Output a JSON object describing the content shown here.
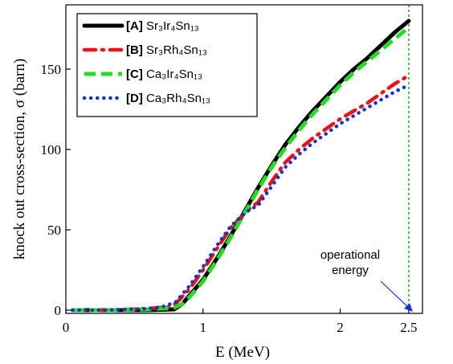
{
  "chart_data": {
    "type": "line",
    "xlabel": "E (MeV)",
    "ylabel": "knock out cross-section, σ (barn)",
    "xlim": [
      0,
      2.6
    ],
    "ylim": [
      -2,
      190
    ],
    "x_ticks": [
      {
        "value": 0,
        "label": "0"
      },
      {
        "value": 1,
        "label": "1"
      },
      {
        "value": 2,
        "label": "2"
      },
      {
        "value": 2.5,
        "label": "2.5"
      }
    ],
    "y_ticks": [
      {
        "value": 0,
        "label": "0"
      },
      {
        "value": 50,
        "label": "50"
      },
      {
        "value": 100,
        "label": "100"
      },
      {
        "value": 150,
        "label": "150"
      }
    ],
    "series": [
      {
        "key": "A",
        "tag": "[A]",
        "compound": "Sr₃Ir₄Sn₁₃",
        "color": "#000000",
        "style": "solid",
        "x": [
          0.05,
          0.3,
          0.6,
          0.79,
          0.85,
          0.9,
          1.0,
          1.1,
          1.2,
          1.3,
          1.4,
          1.5,
          1.6,
          1.7,
          1.8,
          1.9,
          2.0,
          2.1,
          2.2,
          2.3,
          2.4,
          2.5
        ],
        "y": [
          0,
          0,
          0,
          0.5,
          4,
          9,
          19,
          32,
          46,
          61,
          76,
          90,
          103,
          114,
          124,
          133,
          142,
          150,
          157,
          165,
          173,
          180
        ]
      },
      {
        "key": "B",
        "tag": "[B]",
        "compound": "Sr₃Rh₄Sn₁₃",
        "color": "#ee1111",
        "style": "dashdot",
        "x": [
          0.05,
          0.3,
          0.6,
          0.75,
          0.8,
          0.9,
          1.0,
          1.1,
          1.2,
          1.3,
          1.35,
          1.4,
          1.5,
          1.6,
          1.7,
          1.8,
          1.9,
          2.0,
          2.1,
          2.2,
          2.3,
          2.4,
          2.5
        ],
        "y": [
          0,
          0,
          1,
          2,
          4,
          13,
          25,
          38,
          51,
          60,
          64,
          67,
          80,
          92,
          100,
          107,
          113,
          119,
          124,
          129,
          135,
          141,
          146
        ]
      },
      {
        "key": "C",
        "tag": "[C]",
        "compound": "Ca₃Ir₄Sn₁₃",
        "color": "#22dd22",
        "style": "dashed",
        "x": [
          0.05,
          0.3,
          0.6,
          0.79,
          0.85,
          0.9,
          1.0,
          1.1,
          1.2,
          1.3,
          1.4,
          1.5,
          1.6,
          1.7,
          1.8,
          1.9,
          2.0,
          2.1,
          2.2,
          2.3,
          2.4,
          2.5
        ],
        "y": [
          0,
          0,
          0.5,
          1.5,
          4,
          8,
          18,
          31,
          45,
          60,
          75,
          89,
          101,
          112,
          122,
          131,
          140,
          148,
          155,
          162,
          169,
          176
        ]
      },
      {
        "key": "D",
        "tag": "[D]",
        "compound": "Ca₃Rh₄Sn₁₃",
        "color": "#1133cc",
        "style": "dotted",
        "x": [
          0.05,
          0.3,
          0.6,
          0.7,
          0.8,
          0.9,
          1.0,
          1.1,
          1.2,
          1.3,
          1.35,
          1.4,
          1.5,
          1.6,
          1.7,
          1.8,
          1.9,
          2.0,
          2.1,
          2.2,
          2.3,
          2.4,
          2.5
        ],
        "y": [
          0,
          0,
          1,
          2,
          5,
          15,
          27,
          40,
          52,
          60,
          63,
          65,
          77,
          89,
          97,
          104,
          110,
          116,
          121,
          126,
          131,
          136,
          140
        ]
      }
    ],
    "vertical_line": {
      "x": 2.5,
      "color": "#22aa22",
      "style": "dotted"
    },
    "annotation": {
      "lines": [
        "operational",
        "energy"
      ],
      "arrow_color": "#1133dd"
    },
    "legend_position": "top-left"
  }
}
